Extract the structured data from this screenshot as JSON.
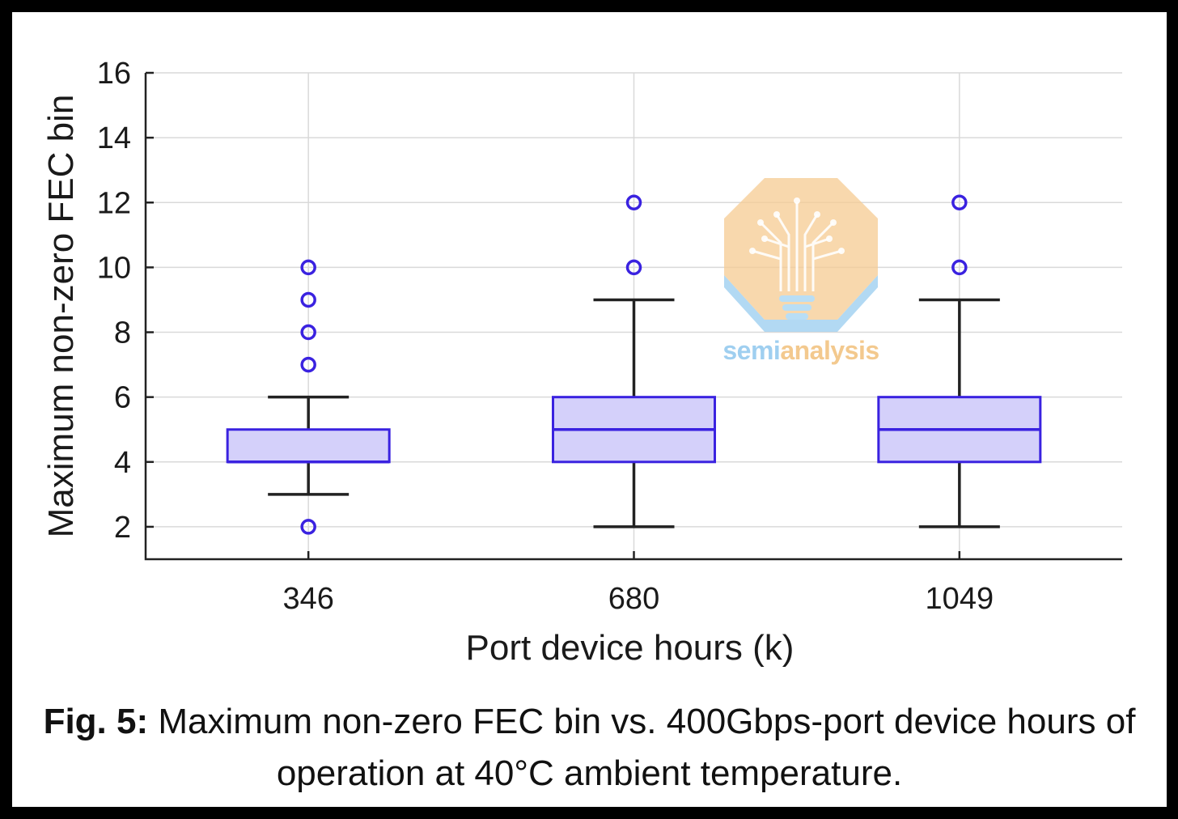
{
  "chart_data": {
    "type": "box",
    "ylabel": "Maximum non-zero FEC bin",
    "xlabel": "Port device hours (k)",
    "ylim": [
      1,
      16
    ],
    "yticks": [
      2,
      4,
      6,
      8,
      10,
      12,
      14,
      16
    ],
    "grid": true,
    "categories": [
      "346",
      "680",
      "1049"
    ],
    "series": [
      {
        "name": "346",
        "whisker_low": 3,
        "q1": 4,
        "median": 4,
        "q3": 5,
        "whisker_high": 6,
        "outliers": [
          2,
          7,
          8,
          9,
          10
        ]
      },
      {
        "name": "680",
        "whisker_low": 2,
        "q1": 4,
        "median": 5,
        "q3": 6,
        "whisker_high": 9,
        "outliers": [
          10,
          12
        ]
      },
      {
        "name": "1049",
        "whisker_low": 2,
        "q1": 4,
        "median": 5,
        "q3": 6,
        "whisker_high": 9,
        "outliers": [
          10,
          12
        ]
      }
    ],
    "colors": {
      "box_fill": "#d4d0fa",
      "box_edge": "#3a22e0",
      "whisker": "#222222"
    }
  },
  "caption": {
    "label": "Fig. 5:",
    "text": " Maximum non-zero FEC bin vs. 400Gbps-port device hours of operation at 40°C ambient temperature."
  },
  "watermark": {
    "icon": "circuit-tree-bulb-icon",
    "text_part1": "semi",
    "text_part2": "analysis"
  }
}
